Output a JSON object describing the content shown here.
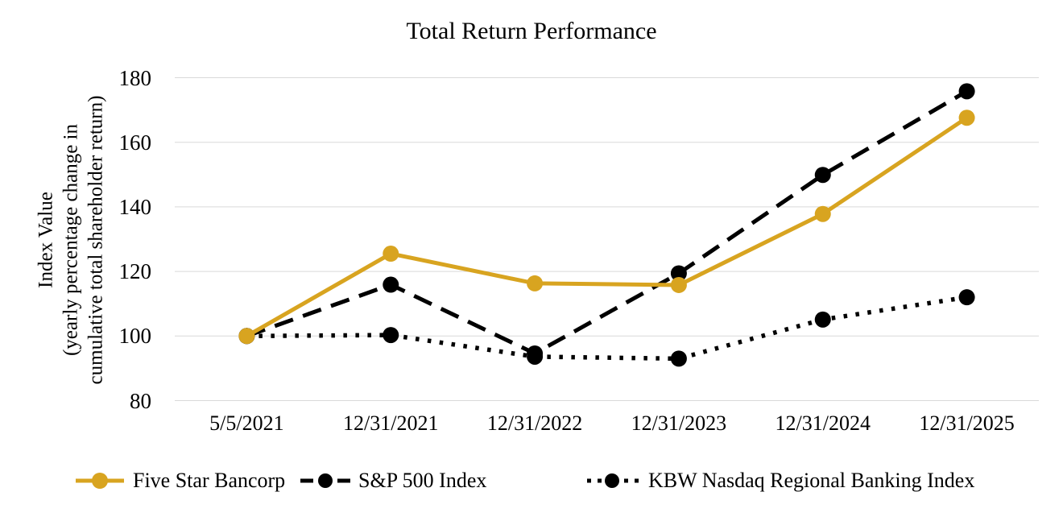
{
  "chart_data": {
    "type": "line",
    "title": "Total Return Performance",
    "categories": [
      "5/5/2021",
      "12/31/2021",
      "12/31/2022",
      "12/31/2023",
      "12/31/2024",
      "12/31/2025"
    ],
    "series": [
      {
        "name": "Five Star Bancorp",
        "color": "#D8A420",
        "style": "solid",
        "values": [
          100,
          125.5,
          116.3,
          115.8,
          137.8,
          167.6
        ]
      },
      {
        "name": "S&P 500 Index",
        "color": "#000000",
        "style": "dashed",
        "values": [
          100,
          115.9,
          94.6,
          119.4,
          149.9,
          175.8
        ]
      },
      {
        "name": "KBW Nasdaq Regional Banking Index",
        "color": "#000000",
        "style": "dotted",
        "values": [
          100,
          100.3,
          93.6,
          93.0,
          105.1,
          112.0
        ]
      }
    ],
    "ylabel_lines": [
      "Index Value",
      "(yearly percentage change in",
      "cumulative total shareholder return)"
    ],
    "yticks": [
      80,
      100,
      120,
      140,
      160,
      180
    ],
    "ylim": [
      80,
      180
    ],
    "grid": true,
    "gridline_color": "#D9D9D9",
    "background": "#FFFFFF",
    "legend_position": "bottom"
  }
}
